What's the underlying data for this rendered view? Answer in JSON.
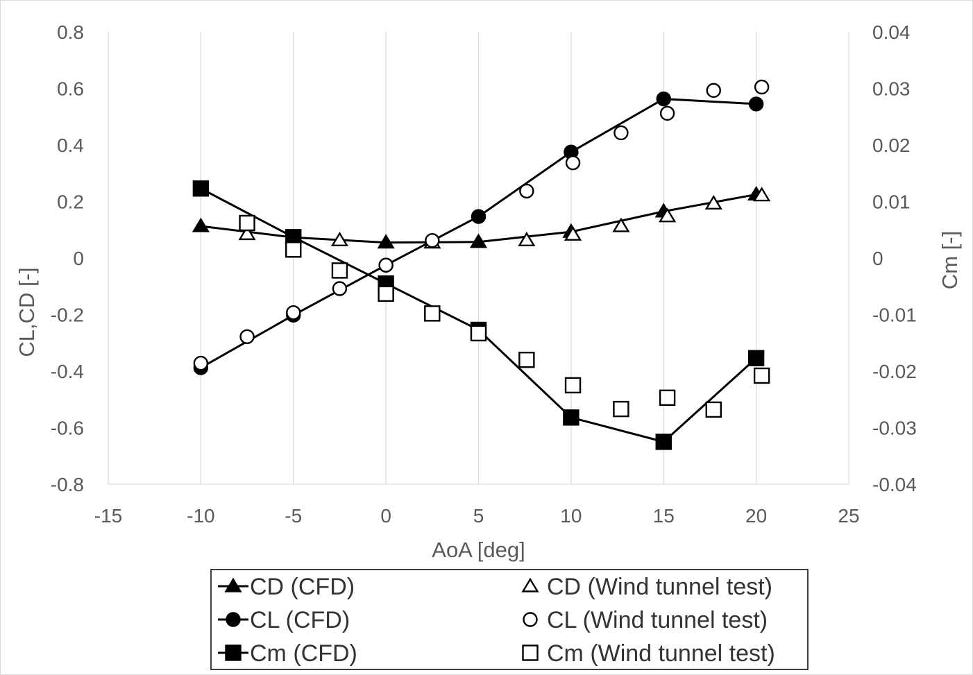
{
  "chart_data": {
    "type": "scatter",
    "title": "",
    "xlabel": "AoA [deg]",
    "ylabel_left": "CL,CD [-]",
    "ylabel_right": "Cm [-]",
    "xlim": [
      -15,
      25
    ],
    "ylim_left": [
      -0.8,
      0.8
    ],
    "ylim_right": [
      -0.04,
      0.04
    ],
    "x_ticks": [
      -15,
      -10,
      -5,
      0,
      5,
      10,
      15,
      20,
      25
    ],
    "x_tick_labels": [
      "-15",
      "-10",
      "-5",
      "0",
      "5",
      "10",
      "15",
      "20",
      "25"
    ],
    "y_left_ticks": [
      0.8,
      0.6,
      0.4,
      0.2,
      0,
      -0.2,
      -0.4,
      -0.6,
      -0.8
    ],
    "y_left_tick_labels": [
      "0.8",
      "0.6",
      "0.4",
      "0.2",
      "0",
      "-0.2",
      "-0.4",
      "-0.6",
      "-0.8"
    ],
    "y_right_ticks": [
      0.04,
      0.03,
      0.02,
      0.01,
      0,
      -0.01,
      -0.02,
      -0.03,
      -0.04
    ],
    "y_right_tick_labels": [
      "0.04",
      "0.03",
      "0.02",
      "0.01",
      "0",
      "-0.01",
      "-0.02",
      "-0.03",
      "-0.04"
    ],
    "grid": "vertical",
    "legend_position": "bottom",
    "series": [
      {
        "name": "CD (CFD)",
        "axis": "left",
        "marker": "filled-triangle",
        "line": true,
        "x": [
          -10,
          -5,
          0,
          5,
          10,
          15,
          20
        ],
        "y": [
          0.113,
          0.073,
          0.055,
          0.057,
          0.093,
          0.165,
          0.225
        ]
      },
      {
        "name": "CD (Wind tunnel test)",
        "axis": "left",
        "marker": "open-triangle",
        "line": false,
        "x": [
          -7.5,
          -2.5,
          2.5,
          7.6,
          10.1,
          12.7,
          15.2,
          17.7,
          20.3
        ],
        "y": [
          0.085,
          0.063,
          0.055,
          0.063,
          0.083,
          0.113,
          0.148,
          0.193,
          0.222
        ]
      },
      {
        "name": "CL (CFD)",
        "axis": "left",
        "marker": "filled-circle",
        "line": true,
        "x": [
          -10,
          -5,
          0,
          5,
          10,
          15,
          20
        ],
        "y": [
          -0.388,
          -0.202,
          -0.025,
          0.147,
          0.375,
          0.563,
          0.545
        ]
      },
      {
        "name": "CL (Wind tunnel test)",
        "axis": "left",
        "marker": "open-circle",
        "line": false,
        "x": [
          -10,
          -7.5,
          -5,
          -2.5,
          0,
          2.5,
          7.6,
          10.1,
          12.7,
          15.2,
          17.7,
          20.3
        ],
        "y": [
          -0.372,
          -0.278,
          -0.193,
          -0.108,
          -0.025,
          0.062,
          0.237,
          0.337,
          0.443,
          0.512,
          0.593,
          0.605
        ]
      },
      {
        "name": "Cm (CFD)",
        "axis": "right",
        "marker": "filled-square",
        "line": true,
        "x": [
          -10,
          -5,
          0,
          5,
          10,
          15,
          20
        ],
        "y": [
          0.0123,
          0.0037,
          -0.0045,
          -0.0127,
          -0.0282,
          -0.0325,
          -0.0177
        ]
      },
      {
        "name": "Cm (Wind tunnel test)",
        "axis": "right",
        "marker": "open-square",
        "line": false,
        "x": [
          -7.5,
          -5,
          -2.5,
          0,
          2.5,
          5,
          7.6,
          10.1,
          12.7,
          15.2,
          17.7,
          20.3
        ],
        "y": [
          0.0062,
          0.0015,
          -0.0022,
          -0.0063,
          -0.0098,
          -0.0133,
          -0.018,
          -0.0225,
          -0.0267,
          -0.0247,
          -0.0268,
          -0.0208
        ]
      }
    ],
    "legend_order": [
      0,
      1,
      2,
      3,
      4,
      5
    ]
  }
}
